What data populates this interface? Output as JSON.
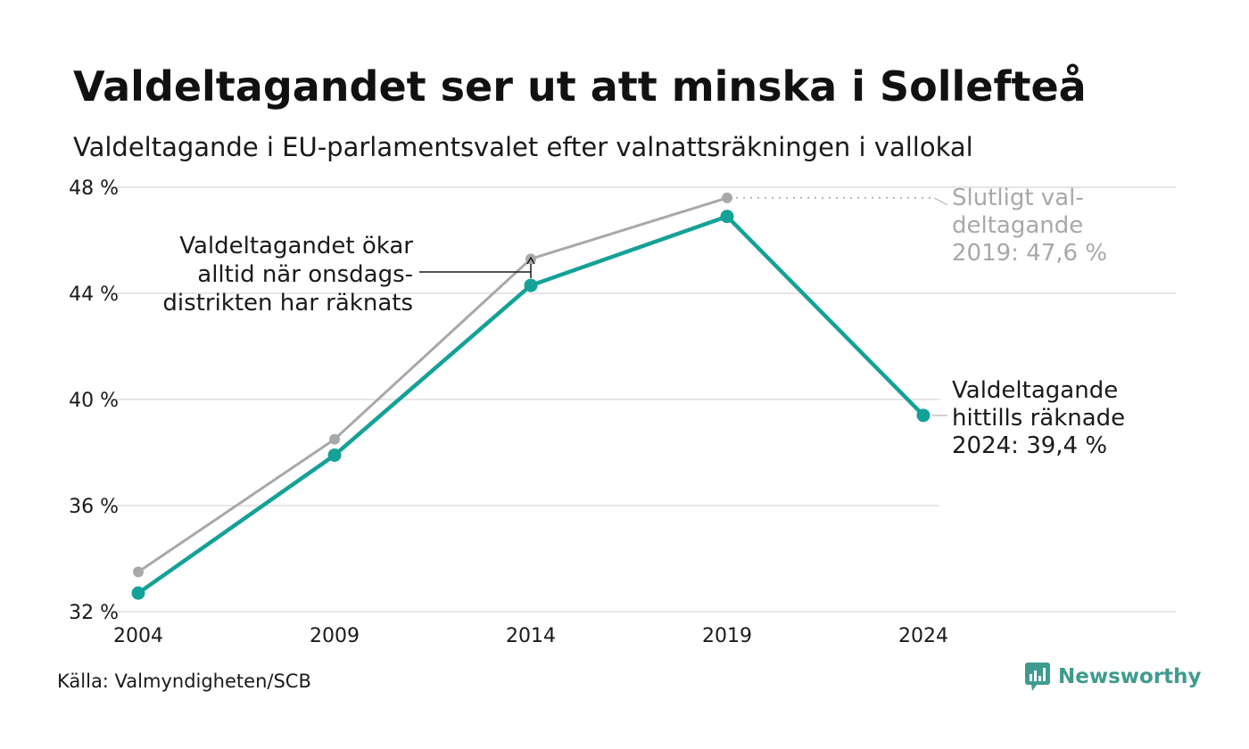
{
  "title": "Valdeltagandet ser ut att minska i Sollefteå",
  "subtitle": "Valdeltagande i EU-parlamentsvalet efter valnattsräkningen i vallokal",
  "source": "Källa: Valmyndigheten/SCB",
  "brand": "Newsworthy",
  "colors": {
    "main_series": "#14a197",
    "final_series": "#a8a8a8",
    "grid": "#e6e6e6",
    "text": "#1a1a1a",
    "muted_text": "#a8a8a8",
    "brand": "#3f9b8f"
  },
  "chart_data": {
    "type": "line",
    "x": [
      2004,
      2009,
      2014,
      2019,
      2024
    ],
    "xticks": [
      "2004",
      "2009",
      "2014",
      "2019",
      "2024"
    ],
    "ylim": [
      32,
      48
    ],
    "yticks": [
      32,
      36,
      40,
      44,
      48
    ],
    "ytick_labels": [
      "32 %",
      "36 %",
      "40 %",
      "44 %",
      "48 %"
    ],
    "grid": true,
    "series": [
      {
        "key": "final",
        "x": [
          2004,
          2009,
          2014,
          2019
        ],
        "values": [
          33.5,
          38.5,
          45.3,
          47.6
        ]
      },
      {
        "key": "valnatt",
        "x": [
          2004,
          2009,
          2014,
          2019,
          2024
        ],
        "values": [
          32.7,
          37.9,
          44.3,
          46.9,
          39.4
        ]
      }
    ],
    "annotations": {
      "onsdag": [
        "Valdeltagandet ökar",
        "alltid när onsdags-",
        "distrikten har räknats"
      ],
      "final_2019": [
        "Slutligt val-",
        "deltagande",
        "2019: 47,6 %"
      ],
      "current_2024": [
        "Valdeltagande",
        "hittills räknade",
        "2024: 39,4 %"
      ]
    }
  }
}
